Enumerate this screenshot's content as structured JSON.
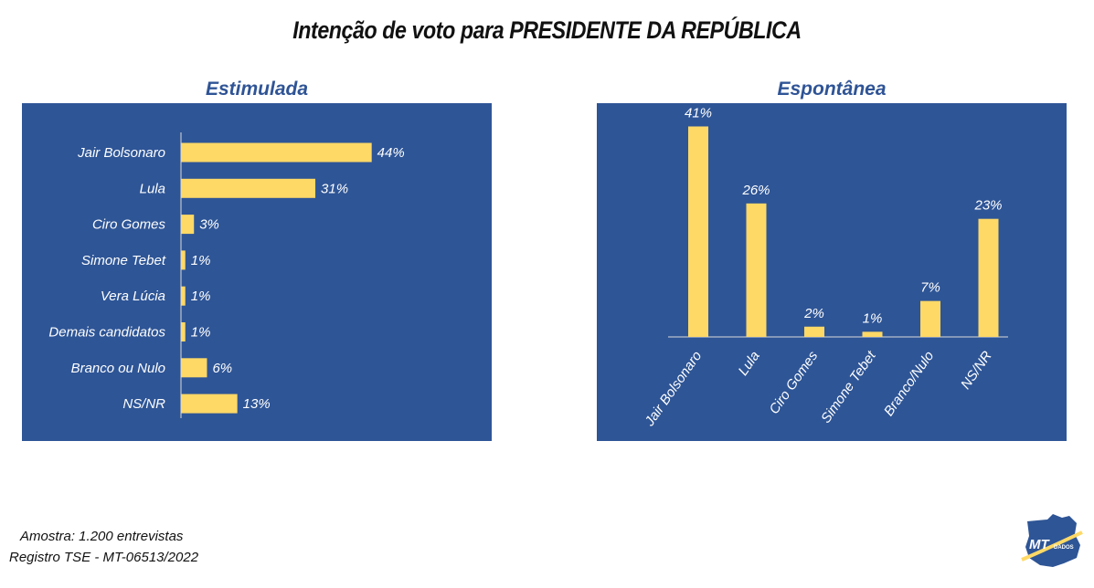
{
  "page": {
    "title": "Intenção de voto para PRESIDENTE DA REPÚBLICA"
  },
  "footer": {
    "line1": "Amostra: 1.200 entrevistas",
    "line2": "Registro TSE -  MT-06513/2022"
  },
  "logo": {
    "text_main": "MT",
    "text_sub": "DADOS"
  },
  "colors": {
    "panel_bg": "#2e5596",
    "bar": "#ffd966",
    "label_text": "#ffffff",
    "panel_title": "#2f5496",
    "axis": "#d9d9d9"
  },
  "chart_data": [
    {
      "type": "bar",
      "orientation": "horizontal",
      "title": "Estimulada",
      "categories": [
        "Jair Bolsonaro",
        "Lula",
        "Ciro Gomes",
        "Simone Tebet",
        "Vera Lúcia",
        "Demais candidatos",
        "Branco ou Nulo",
        "NS/NR"
      ],
      "values": [
        44,
        31,
        3,
        1,
        1,
        1,
        6,
        13
      ],
      "value_labels": [
        "44%",
        "31%",
        "3%",
        "1%",
        "1%",
        "1%",
        "6%",
        "13%"
      ],
      "xlim": [
        0,
        70
      ],
      "grid": false
    },
    {
      "type": "bar",
      "orientation": "vertical",
      "title": "Espontânea",
      "categories": [
        "Jair Bolsonaro",
        "Lula",
        "Ciro Gomes",
        "Simone Tebet",
        "Branco/Nulo",
        "NS/NR"
      ],
      "values": [
        41,
        26,
        2,
        1,
        7,
        23
      ],
      "value_labels": [
        "41%",
        "26%",
        "2%",
        "1%",
        "7%",
        "23%"
      ],
      "ylim": [
        0,
        45
      ],
      "grid": false
    }
  ]
}
